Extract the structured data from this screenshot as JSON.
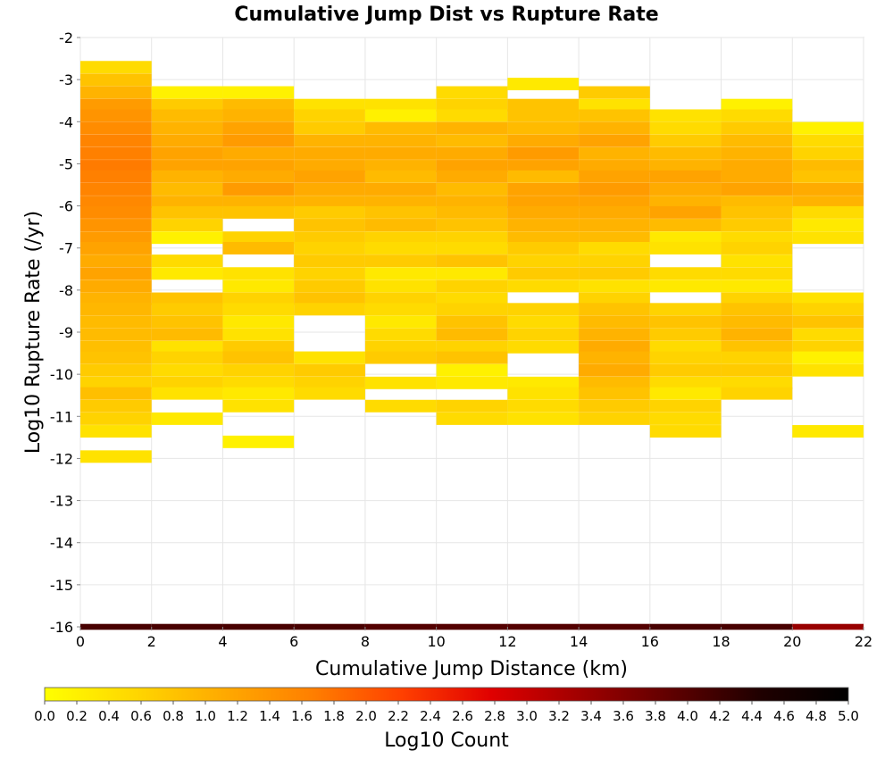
{
  "chart_data": {
    "type": "heatmap",
    "title": "Cumulative Jump Dist vs Rupture Rate",
    "xlabel": "Cumulative Jump Distance (km)",
    "ylabel": "Log10 Rupture Rate (/yr)",
    "xlim": [
      0,
      22
    ],
    "ylim": [
      -16,
      -2
    ],
    "x_ticks": [
      "0",
      "2",
      "4",
      "6",
      "8",
      "10",
      "12",
      "14",
      "16",
      "18",
      "20",
      "22"
    ],
    "y_ticks": [
      "-2",
      "-3",
      "-4",
      "-5",
      "-6",
      "-7",
      "-8",
      "-9",
      "-10",
      "-11",
      "-12",
      "-13",
      "-14",
      "-15",
      "-16"
    ],
    "grid": true,
    "x_bin_edges": [
      0,
      2,
      4,
      6,
      8,
      10,
      12,
      14,
      16,
      18,
      20,
      22
    ],
    "y_bin_size": 0.2857,
    "y_bin_top": -2.0,
    "value_label": "Log10 Count",
    "colorbar": {
      "label": "Log10 Count",
      "min": 0.0,
      "max": 5.0,
      "ticks": [
        "0.0",
        "0.2",
        "0.4",
        "0.6",
        "0.8",
        "1.0",
        "1.2",
        "1.4",
        "1.6",
        "1.8",
        "2.0",
        "2.2",
        "2.4",
        "2.6",
        "2.8",
        "3.0",
        "3.2",
        "3.4",
        "3.6",
        "3.8",
        "4.0",
        "4.2",
        "4.4",
        "4.6",
        "4.8",
        "5.0"
      ],
      "colormap": [
        "#ffff00",
        "#ffd700",
        "#ffaa00",
        "#ff7f00",
        "#ff4000",
        "#e00000",
        "#a00000",
        "#600000",
        "#200000",
        "#000000"
      ]
    },
    "columns": [
      {
        "x_range": [
          0,
          2
        ],
        "cells": [
          [
            -2.7,
            0.5
          ],
          [
            -3.0,
            0.8
          ],
          [
            -3.3,
            1.0
          ],
          [
            -3.6,
            1.3
          ],
          [
            -3.85,
            1.4
          ],
          [
            -4.15,
            1.5
          ],
          [
            -4.45,
            1.6
          ],
          [
            -4.75,
            1.65
          ],
          [
            -5.05,
            1.7
          ],
          [
            -5.3,
            1.65
          ],
          [
            -5.6,
            1.6
          ],
          [
            -5.9,
            1.55
          ],
          [
            -6.15,
            1.5
          ],
          [
            -6.45,
            1.4
          ],
          [
            -6.75,
            1.3
          ],
          [
            -7.0,
            1.2
          ],
          [
            -7.3,
            1.1
          ],
          [
            -7.6,
            1.2
          ],
          [
            -7.9,
            1.1
          ],
          [
            -8.2,
            1.0
          ],
          [
            -8.45,
            0.95
          ],
          [
            -8.75,
            0.9
          ],
          [
            -9.05,
            0.9
          ],
          [
            -9.35,
            0.85
          ],
          [
            -9.6,
            0.8
          ],
          [
            -9.9,
            0.7
          ],
          [
            -10.2,
            0.6
          ],
          [
            -10.45,
            0.85
          ],
          [
            -10.75,
            0.7
          ],
          [
            -11.05,
            0.6
          ],
          [
            -11.35,
            0.4
          ],
          [
            -11.95,
            0.4
          ]
        ]
      },
      {
        "x_range": [
          2,
          4
        ],
        "cells": [
          [
            -3.3,
            0.2
          ],
          [
            -3.6,
            0.7
          ],
          [
            -3.85,
            0.9
          ],
          [
            -4.15,
            1.0
          ],
          [
            -4.45,
            1.1
          ],
          [
            -4.75,
            1.2
          ],
          [
            -5.05,
            1.2
          ],
          [
            -5.3,
            1.0
          ],
          [
            -5.6,
            0.9
          ],
          [
            -5.9,
            1.0
          ],
          [
            -6.15,
            0.8
          ],
          [
            -6.45,
            0.6
          ],
          [
            -6.75,
            0.2
          ],
          [
            -7.3,
            0.5
          ],
          [
            -7.6,
            0.3
          ],
          [
            -8.2,
            0.8
          ],
          [
            -8.45,
            0.7
          ],
          [
            -8.75,
            0.8
          ],
          [
            -9.05,
            0.9
          ],
          [
            -9.35,
            0.4
          ],
          [
            -9.6,
            0.6
          ],
          [
            -9.9,
            0.5
          ],
          [
            -10.2,
            0.6
          ],
          [
            -10.45,
            0.4
          ],
          [
            -11.05,
            0.3
          ]
        ]
      },
      {
        "x_range": [
          4,
          6
        ],
        "cells": [
          [
            -3.3,
            0.2
          ],
          [
            -3.6,
            0.9
          ],
          [
            -3.85,
            1.0
          ],
          [
            -4.15,
            1.2
          ],
          [
            -4.45,
            1.3
          ],
          [
            -4.75,
            1.1
          ],
          [
            -5.05,
            1.2
          ],
          [
            -5.3,
            1.1
          ],
          [
            -5.6,
            1.3
          ],
          [
            -5.9,
            1.0
          ],
          [
            -6.15,
            0.8
          ],
          [
            -6.75,
            0.6
          ],
          [
            -7.0,
            0.9
          ],
          [
            -7.6,
            0.4
          ],
          [
            -7.9,
            0.3
          ],
          [
            -8.2,
            0.6
          ],
          [
            -8.45,
            0.5
          ],
          [
            -8.75,
            0.3
          ],
          [
            -9.05,
            0.4
          ],
          [
            -9.35,
            0.7
          ],
          [
            -9.6,
            0.8
          ],
          [
            -9.9,
            0.6
          ],
          [
            -10.2,
            0.5
          ],
          [
            -10.45,
            0.3
          ],
          [
            -10.75,
            0.4
          ],
          [
            -11.6,
            0.2
          ]
        ]
      },
      {
        "x_range": [
          6,
          8
        ],
        "cells": [
          [
            -3.6,
            0.4
          ],
          [
            -3.85,
            0.6
          ],
          [
            -4.15,
            0.7
          ],
          [
            -4.45,
            1.0
          ],
          [
            -4.75,
            1.1
          ],
          [
            -5.05,
            1.1
          ],
          [
            -5.3,
            1.2
          ],
          [
            -5.6,
            1.1
          ],
          [
            -5.9,
            1.0
          ],
          [
            -6.15,
            0.7
          ],
          [
            -6.45,
            0.8
          ],
          [
            -6.75,
            0.7
          ],
          [
            -7.0,
            0.6
          ],
          [
            -7.3,
            0.7
          ],
          [
            -7.6,
            0.6
          ],
          [
            -7.9,
            0.7
          ],
          [
            -8.2,
            0.8
          ],
          [
            -8.45,
            0.6
          ],
          [
            -9.6,
            0.4
          ],
          [
            -9.9,
            0.7
          ],
          [
            -10.2,
            0.6
          ],
          [
            -10.45,
            0.5
          ]
        ]
      },
      {
        "x_range": [
          8,
          10
        ],
        "cells": [
          [
            -3.6,
            0.4
          ],
          [
            -3.85,
            0.2
          ],
          [
            -4.15,
            0.9
          ],
          [
            -4.45,
            1.0
          ],
          [
            -4.75,
            1.1
          ],
          [
            -5.05,
            1.0
          ],
          [
            -5.3,
            0.9
          ],
          [
            -5.6,
            1.1
          ],
          [
            -5.9,
            1.0
          ],
          [
            -6.15,
            0.8
          ],
          [
            -6.45,
            0.9
          ],
          [
            -6.75,
            0.6
          ],
          [
            -7.0,
            0.5
          ],
          [
            -7.3,
            0.7
          ],
          [
            -7.6,
            0.3
          ],
          [
            -7.9,
            0.4
          ],
          [
            -8.2,
            0.6
          ],
          [
            -8.45,
            0.5
          ],
          [
            -8.75,
            0.3
          ],
          [
            -9.05,
            0.5
          ],
          [
            -9.35,
            0.6
          ],
          [
            -9.6,
            0.7
          ],
          [
            -10.2,
            0.4
          ],
          [
            -10.75,
            0.5
          ]
        ]
      },
      {
        "x_range": [
          10,
          12
        ],
        "cells": [
          [
            -3.3,
            0.5
          ],
          [
            -3.6,
            0.6
          ],
          [
            -3.85,
            0.5
          ],
          [
            -4.15,
            1.0
          ],
          [
            -4.45,
            0.9
          ],
          [
            -4.75,
            1.1
          ],
          [
            -5.05,
            1.2
          ],
          [
            -5.3,
            1.1
          ],
          [
            -5.6,
            0.9
          ],
          [
            -5.9,
            1.0
          ],
          [
            -6.15,
            0.9
          ],
          [
            -6.45,
            0.8
          ],
          [
            -6.75,
            0.6
          ],
          [
            -7.0,
            0.5
          ],
          [
            -7.3,
            0.8
          ],
          [
            -7.6,
            0.3
          ],
          [
            -7.9,
            0.6
          ],
          [
            -8.2,
            0.5
          ],
          [
            -8.45,
            0.6
          ],
          [
            -8.75,
            0.8
          ],
          [
            -9.05,
            0.9
          ],
          [
            -9.35,
            0.6
          ],
          [
            -9.6,
            0.8
          ],
          [
            -9.9,
            0.2
          ],
          [
            -10.2,
            0.3
          ],
          [
            -10.75,
            0.6
          ],
          [
            -11.05,
            0.5
          ]
        ]
      },
      {
        "x_range": [
          12,
          14
        ],
        "cells": [
          [
            -3.1,
            0.3
          ],
          [
            -3.6,
            0.8
          ],
          [
            -3.85,
            0.8
          ],
          [
            -4.15,
            0.9
          ],
          [
            -4.45,
            1.1
          ],
          [
            -4.75,
            1.3
          ],
          [
            -5.05,
            1.2
          ],
          [
            -5.3,
            0.9
          ],
          [
            -5.6,
            1.2
          ],
          [
            -5.9,
            1.2
          ],
          [
            -6.15,
            1.1
          ],
          [
            -6.45,
            1.0
          ],
          [
            -6.75,
            0.9
          ],
          [
            -7.0,
            0.7
          ],
          [
            -7.3,
            0.6
          ],
          [
            -7.6,
            0.7
          ],
          [
            -7.9,
            0.5
          ],
          [
            -8.45,
            0.6
          ],
          [
            -8.75,
            0.5
          ],
          [
            -9.05,
            0.6
          ],
          [
            -9.35,
            0.5
          ],
          [
            -10.2,
            0.3
          ],
          [
            -10.45,
            0.4
          ],
          [
            -10.75,
            0.5
          ],
          [
            -11.05,
            0.4
          ]
        ]
      },
      {
        "x_range": [
          14,
          16
        ],
        "cells": [
          [
            -3.3,
            0.7
          ],
          [
            -3.6,
            0.4
          ],
          [
            -3.85,
            0.8
          ],
          [
            -4.15,
            1.0
          ],
          [
            -4.45,
            1.2
          ],
          [
            -4.75,
            1.0
          ],
          [
            -5.05,
            1.1
          ],
          [
            -5.3,
            1.2
          ],
          [
            -5.6,
            1.3
          ],
          [
            -5.9,
            1.2
          ],
          [
            -6.15,
            1.1
          ],
          [
            -6.45,
            1.0
          ],
          [
            -6.75,
            0.9
          ],
          [
            -7.0,
            0.5
          ],
          [
            -7.3,
            0.6
          ],
          [
            -7.6,
            0.7
          ],
          [
            -7.9,
            0.4
          ],
          [
            -8.2,
            0.6
          ],
          [
            -8.45,
            0.8
          ],
          [
            -8.75,
            0.9
          ],
          [
            -9.05,
            1.0
          ],
          [
            -9.35,
            1.1
          ],
          [
            -9.6,
            1.0
          ],
          [
            -9.9,
            1.1
          ],
          [
            -10.2,
            0.9
          ],
          [
            -10.45,
            0.8
          ],
          [
            -10.75,
            0.7
          ],
          [
            -11.05,
            0.6
          ]
        ]
      },
      {
        "x_range": [
          16,
          18
        ],
        "cells": [
          [
            -3.85,
            0.4
          ],
          [
            -4.15,
            0.5
          ],
          [
            -4.45,
            0.7
          ],
          [
            -4.75,
            0.9
          ],
          [
            -5.05,
            1.0
          ],
          [
            -5.3,
            1.2
          ],
          [
            -5.6,
            1.1
          ],
          [
            -5.9,
            1.0
          ],
          [
            -6.15,
            1.2
          ],
          [
            -6.45,
            0.9
          ],
          [
            -6.75,
            0.3
          ],
          [
            -7.0,
            0.4
          ],
          [
            -7.6,
            0.5
          ],
          [
            -7.9,
            0.3
          ],
          [
            -8.45,
            0.6
          ],
          [
            -8.75,
            0.8
          ],
          [
            -9.05,
            0.7
          ],
          [
            -9.35,
            0.5
          ],
          [
            -9.6,
            0.6
          ],
          [
            -9.9,
            0.7
          ],
          [
            -10.2,
            0.5
          ],
          [
            -10.45,
            0.3
          ],
          [
            -10.75,
            0.6
          ],
          [
            -11.05,
            0.5
          ],
          [
            -11.35,
            0.5
          ]
        ]
      },
      {
        "x_range": [
          18,
          20
        ],
        "cells": [
          [
            -3.6,
            0.2
          ],
          [
            -3.85,
            0.5
          ],
          [
            -4.15,
            0.7
          ],
          [
            -4.45,
            0.9
          ],
          [
            -4.75,
            1.0
          ],
          [
            -5.05,
            1.1
          ],
          [
            -5.3,
            1.1
          ],
          [
            -5.6,
            1.2
          ],
          [
            -5.9,
            0.9
          ],
          [
            -6.15,
            0.8
          ],
          [
            -6.45,
            0.7
          ],
          [
            -6.75,
            0.5
          ],
          [
            -7.0,
            0.6
          ],
          [
            -7.3,
            0.4
          ],
          [
            -7.6,
            0.5
          ],
          [
            -7.9,
            0.3
          ],
          [
            -8.2,
            0.6
          ],
          [
            -8.45,
            0.8
          ],
          [
            -8.75,
            0.9
          ],
          [
            -9.05,
            1.0
          ],
          [
            -9.35,
            0.8
          ],
          [
            -9.6,
            0.6
          ],
          [
            -9.9,
            0.7
          ],
          [
            -10.2,
            0.5
          ],
          [
            -10.45,
            0.6
          ]
        ]
      },
      {
        "x_range": [
          20,
          22
        ],
        "cells": [
          [
            -4.15,
            0.2
          ],
          [
            -4.45,
            0.5
          ],
          [
            -4.75,
            0.6
          ],
          [
            -5.05,
            0.9
          ],
          [
            -5.3,
            0.8
          ],
          [
            -5.6,
            1.1
          ],
          [
            -5.9,
            1.0
          ],
          [
            -6.15,
            0.5
          ],
          [
            -6.45,
            0.3
          ],
          [
            -6.75,
            0.4
          ],
          [
            -8.2,
            0.4
          ],
          [
            -8.45,
            0.6
          ],
          [
            -8.75,
            0.8
          ],
          [
            -9.05,
            0.5
          ],
          [
            -9.35,
            0.6
          ],
          [
            -9.6,
            0.2
          ],
          [
            -9.9,
            0.4
          ],
          [
            -11.35,
            0.3
          ]
        ]
      }
    ],
    "bottom_row": {
      "y": -16.0,
      "values": [
        4.1,
        4.1,
        4.1,
        4.1,
        4.0,
        4.0,
        4.0,
        4.0,
        4.1,
        4.1,
        3.4
      ]
    }
  }
}
